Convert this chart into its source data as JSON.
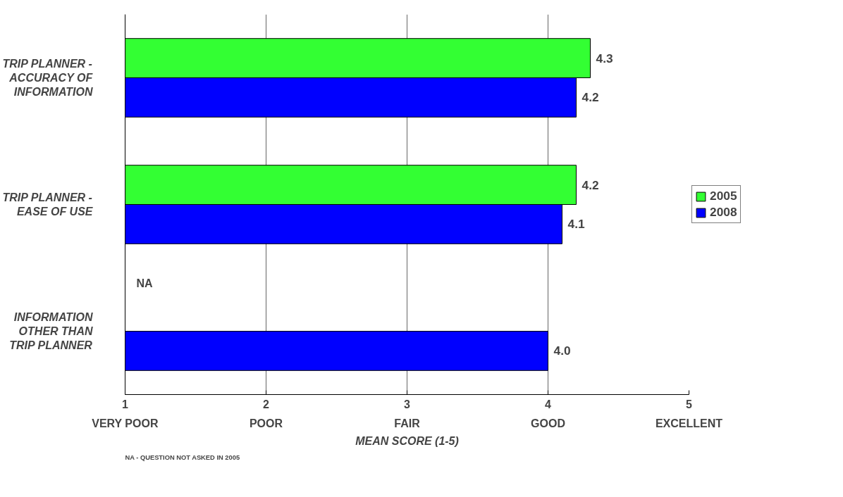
{
  "chart_data": {
    "type": "bar",
    "orientation": "horizontal",
    "categories": [
      "TRIP PLANNER - ACCURACY OF INFORMATION",
      "TRIP PLANNER - EASE OF USE",
      "INFORMATION OTHER THAN TRIP PLANNER"
    ],
    "series": [
      {
        "name": "2005",
        "color": "#33ff33",
        "values": [
          4.3,
          4.2,
          null
        ],
        "value_labels": [
          "4.3",
          "4.2",
          "NA"
        ]
      },
      {
        "name": "2008",
        "color": "#0000ff",
        "values": [
          4.2,
          4.1,
          4.0
        ],
        "value_labels": [
          "4.2",
          "4.1",
          "4.0"
        ]
      }
    ],
    "xlim": [
      1,
      5
    ],
    "xticks": [
      {
        "value": 1,
        "label": "1\nVERY POOR"
      },
      {
        "value": 2,
        "label": "2\nPOOR"
      },
      {
        "value": 3,
        "label": "3\nFAIR"
      },
      {
        "value": 4,
        "label": "4\nGOOD"
      },
      {
        "value": 5,
        "label": "5\nEXCELLENT"
      }
    ],
    "xlabel": "MEAN SCORE (1-5)",
    "grid": "x",
    "legend": "right",
    "annotations": [
      "NA - QUESTION NOT ASKED IN 2005"
    ]
  }
}
